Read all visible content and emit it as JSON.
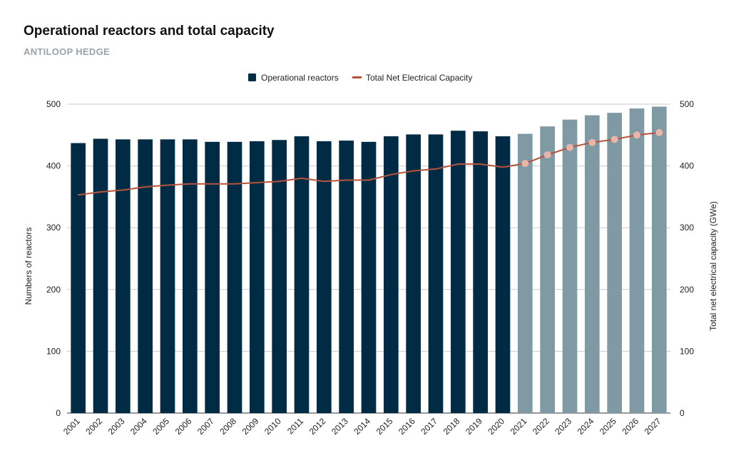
{
  "header": {
    "title": "Operational reactors and total capacity",
    "subtitle": "ANTILOOP HEDGE"
  },
  "colors": {
    "bar_actual": "#002b45",
    "bar_projected": "#809aa5",
    "line": "#b5533c",
    "marker": "#e8b5a8",
    "grid": "#cccccc",
    "text": "#222222"
  },
  "chart_data": {
    "type": "bar",
    "title": "Operational reactors and total capacity",
    "subtitle": "ANTILOOP HEDGE",
    "categories": [
      "2001",
      "2002",
      "2003",
      "2004",
      "2005",
      "2006",
      "2007",
      "2008",
      "2009",
      "2010",
      "2011",
      "2012",
      "2013",
      "2014",
      "2015",
      "2016",
      "2017",
      "2018",
      "2019",
      "2020",
      "2021",
      "2022",
      "2023",
      "2024",
      "2025",
      "2026",
      "2027"
    ],
    "ylabel": "Numbers of reactors",
    "y2label": "Total net electrical capacity (GWe)",
    "ylim": [
      0,
      500
    ],
    "y2lim": [
      0,
      500
    ],
    "yticks": [
      0,
      100,
      200,
      300,
      400,
      500
    ],
    "grid": true,
    "legend_position": "top-center",
    "series": [
      {
        "name": "Operational reactors",
        "type": "bar",
        "axis": "left",
        "values": [
          437,
          444,
          443,
          443,
          443,
          443,
          439,
          439,
          440,
          442,
          448,
          440,
          441,
          439,
          448,
          451,
          451,
          457,
          456,
          448,
          452,
          464,
          475,
          482,
          486,
          493,
          496
        ],
        "projected_from": "2021"
      },
      {
        "name": "Total Net Electrical Capacity",
        "type": "line",
        "axis": "right",
        "values": [
          353,
          358,
          361,
          366,
          369,
          371,
          371,
          371,
          373,
          375,
          380,
          375,
          377,
          377,
          386,
          392,
          395,
          403,
          403,
          398,
          404,
          418,
          430,
          438,
          443,
          450,
          454
        ],
        "markers_from": "2021"
      }
    ]
  }
}
